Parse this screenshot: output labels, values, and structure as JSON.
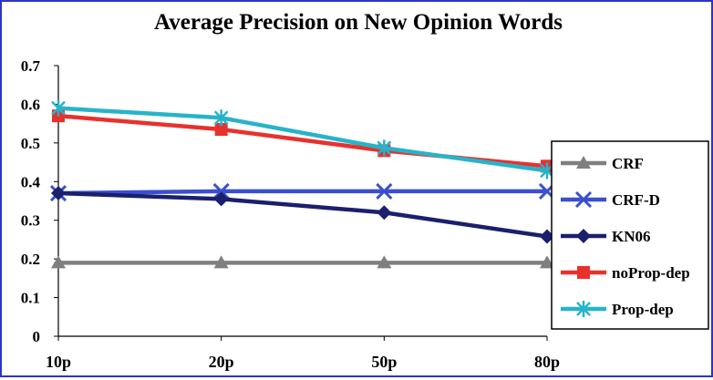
{
  "colors": {
    "border": "#2b34c8",
    "CRF": "#7f7f7f",
    "CRF-D": "#3a4fd0",
    "KN06": "#1a1f6e",
    "noProp-dep": "#e8312c",
    "Prop-dep": "#27b3c9"
  },
  "chart_data": {
    "type": "line",
    "title": "Average Precision on New Opinion Words",
    "xlabel": "",
    "ylabel": "",
    "categories": [
      "10p",
      "20p",
      "50p",
      "80p"
    ],
    "y_ticks": [
      "0",
      "0.1",
      "0.2",
      "0.3",
      "0.4",
      "0.5",
      "0.6",
      "0.7"
    ],
    "ylim": [
      0,
      0.7
    ],
    "grid": false,
    "legend_position": "right",
    "series": [
      {
        "name": "CRF",
        "marker": "triangle",
        "values": [
          0.19,
          0.19,
          0.19,
          0.19
        ]
      },
      {
        "name": "CRF-D",
        "marker": "x",
        "values": [
          0.37,
          0.375,
          0.375,
          0.375
        ]
      },
      {
        "name": "KN06",
        "marker": "diamond",
        "values": [
          0.37,
          0.355,
          0.32,
          0.258
        ]
      },
      {
        "name": "noProp-dep",
        "marker": "square",
        "values": [
          0.57,
          0.535,
          0.48,
          0.44
        ]
      },
      {
        "name": "Prop-dep",
        "marker": "asterisk",
        "values": [
          0.59,
          0.565,
          0.487,
          0.428
        ]
      }
    ]
  }
}
